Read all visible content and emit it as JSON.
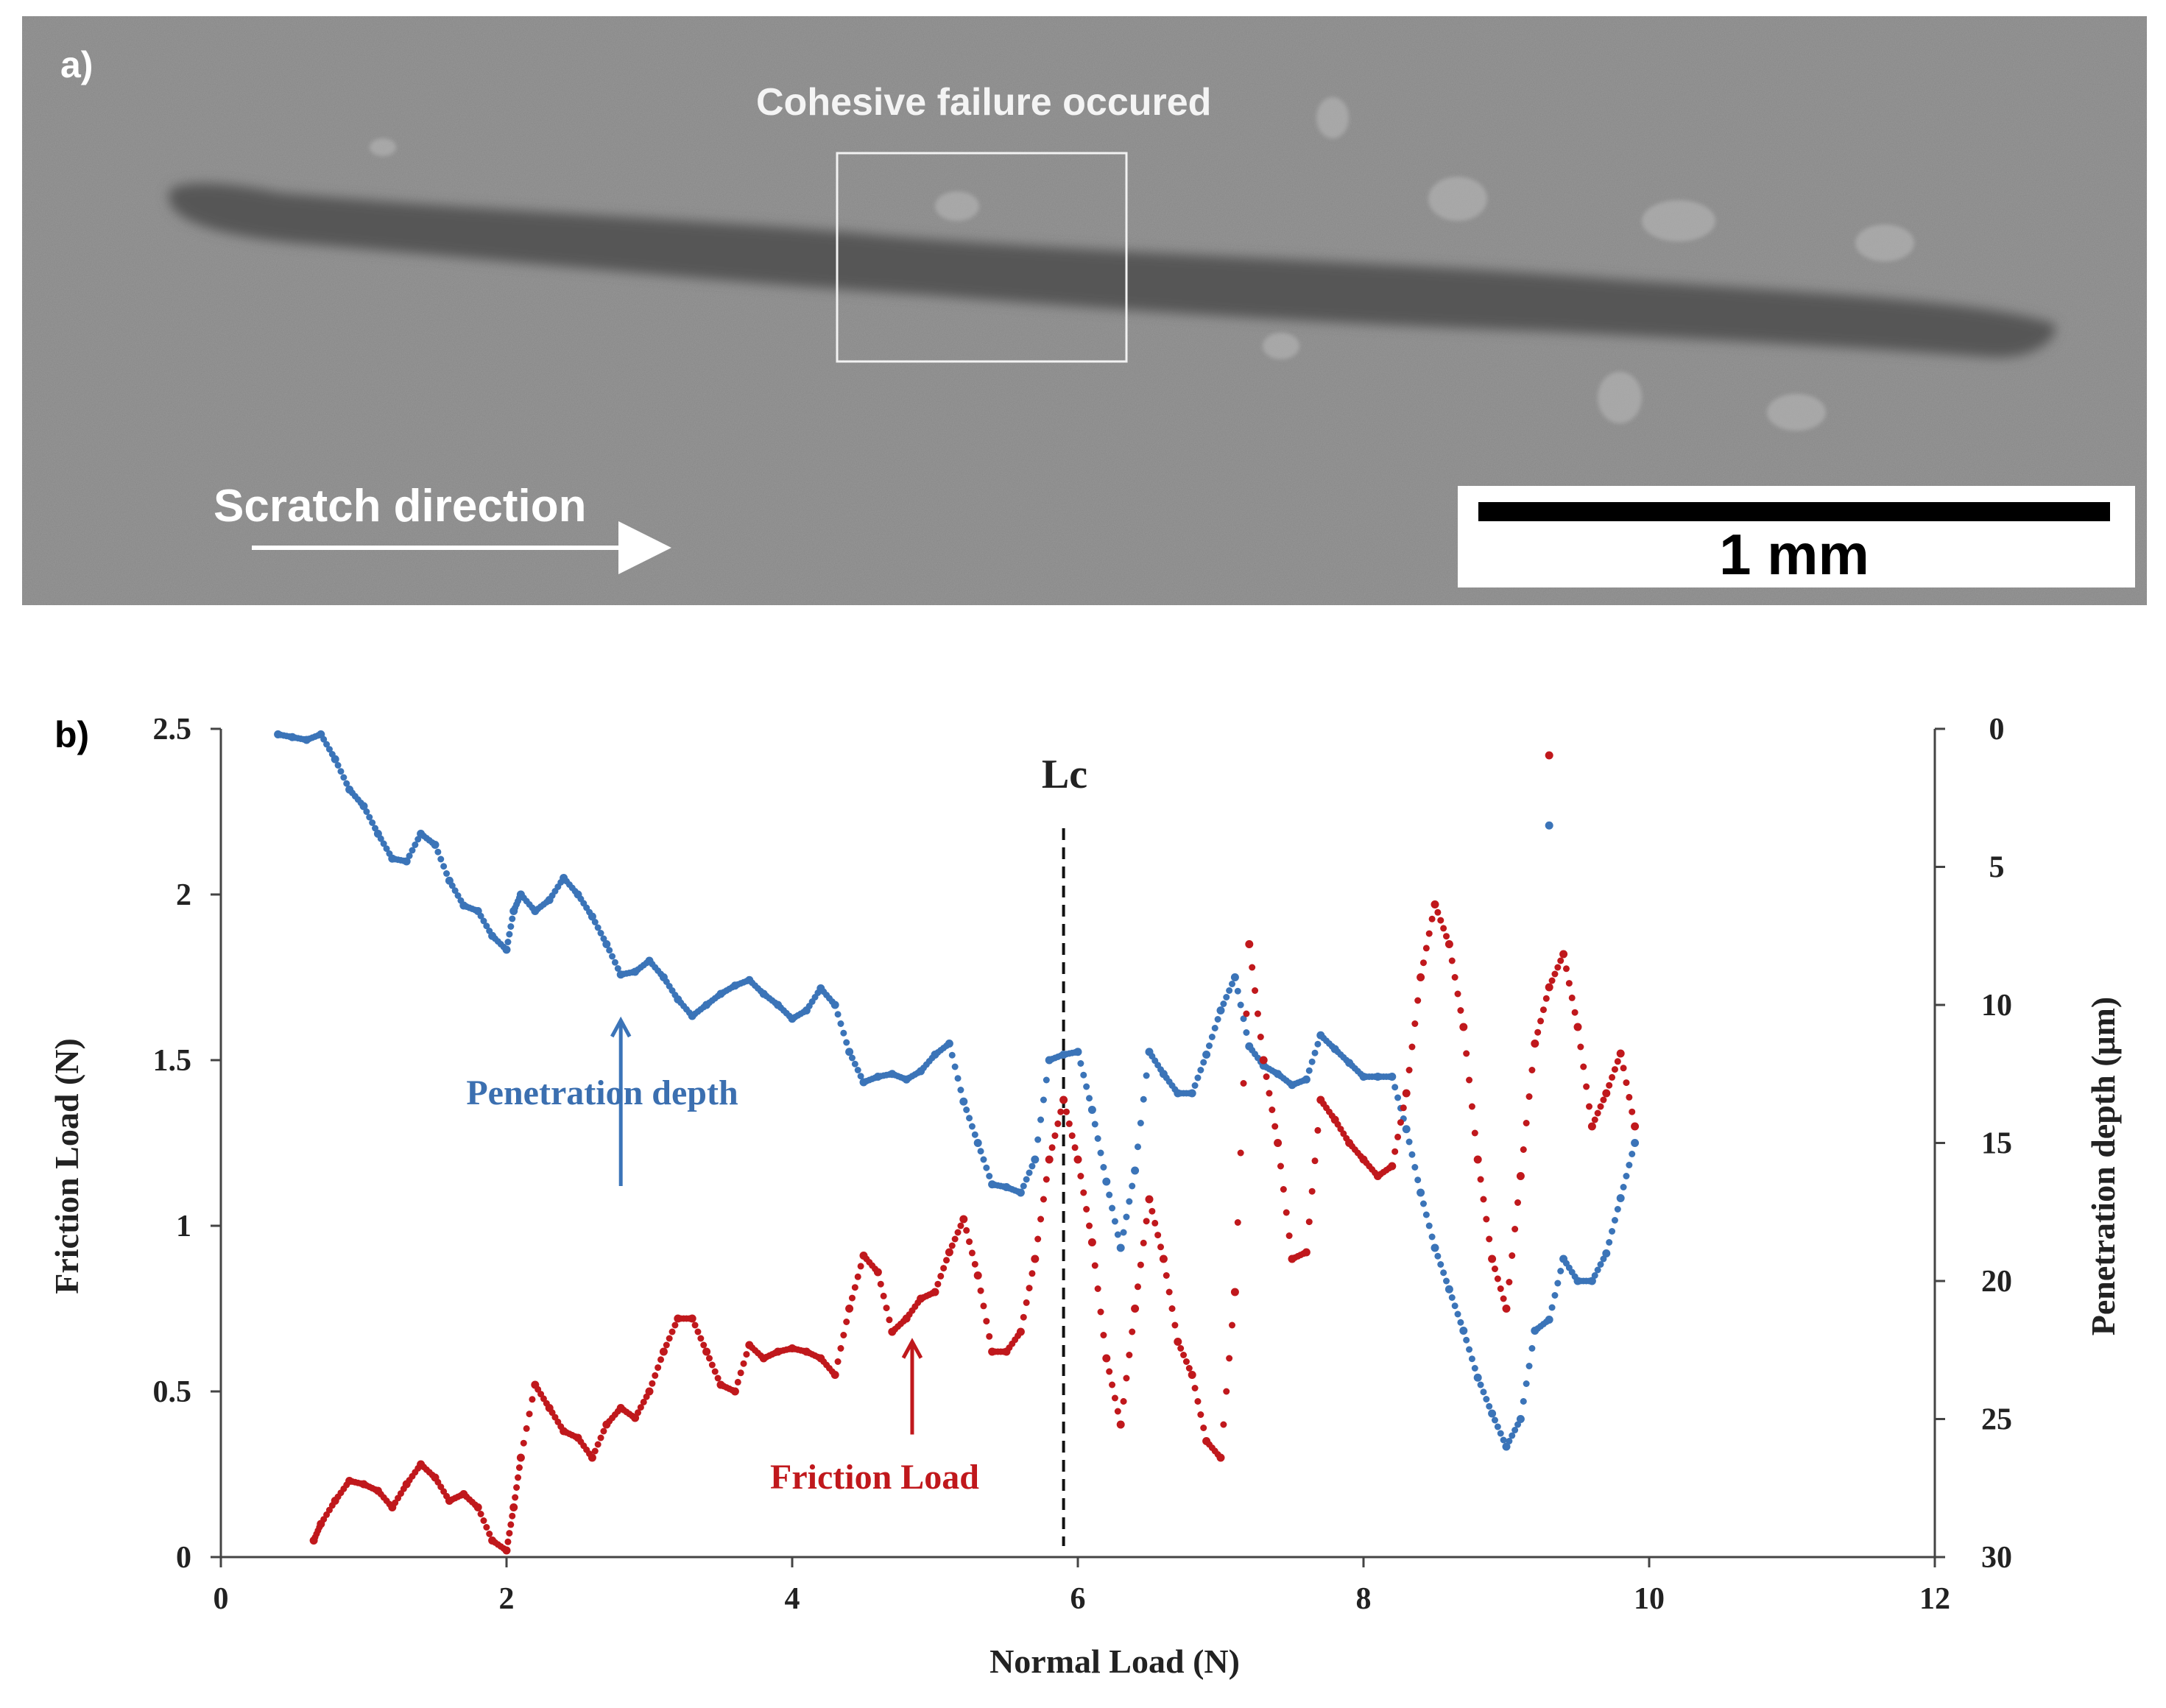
{
  "panel_a": {
    "label": "a)",
    "annotation": "Cohesive failure occured",
    "direction_label": "Scratch direction",
    "scale_bar_label": "1 mm"
  },
  "chart_data": {
    "type": "scatter",
    "panel_label": "b)",
    "xlabel": "Normal Load (N)",
    "ylabel_left": "Friction Load (N)",
    "ylabel_right": "Penetration depth (μm)",
    "xlim": [
      0,
      12
    ],
    "ylim_left": [
      0,
      2.5
    ],
    "ylim_right": [
      0,
      30
    ],
    "right_axis_inverted": true,
    "x_ticks": [
      "0",
      "2",
      "4",
      "6",
      "8",
      "10",
      "12"
    ],
    "y_left_ticks": [
      "0",
      "0.5",
      "1",
      "1.5",
      "2",
      "2.5"
    ],
    "y_right_ticks": [
      "0",
      "5",
      "10",
      "15",
      "20",
      "25",
      "30"
    ],
    "marker_line": {
      "x": 5.9,
      "label": "Lc"
    },
    "annotations": [
      {
        "text": "Penetration depth",
        "color": "#3b6fb0"
      },
      {
        "text": "Friction Load",
        "color": "#c0181c"
      }
    ],
    "colors": {
      "penetration": "#3b74b8",
      "friction": "#c0181c"
    },
    "series": [
      {
        "axis": "right",
        "x": [
          0.4,
          0.5,
          0.6,
          0.7,
          0.8,
          0.9,
          1.0,
          1.1,
          1.2,
          1.3,
          1.4,
          1.5,
          1.6,
          1.7,
          1.8,
          1.9,
          2.0,
          2.05,
          2.1,
          2.2,
          2.3,
          2.4,
          2.5,
          2.6,
          2.7,
          2.8,
          2.9,
          3.0,
          3.1,
          3.2,
          3.3,
          3.4,
          3.5,
          3.6,
          3.7,
          3.8,
          3.9,
          4.0,
          4.1,
          4.2,
          4.3,
          4.4,
          4.5,
          4.6,
          4.7,
          4.8,
          4.9,
          5.0,
          5.1,
          5.2,
          5.3,
          5.4,
          5.5,
          5.6,
          5.7,
          5.8,
          5.9,
          6.0,
          6.1,
          6.2,
          6.3,
          6.4,
          6.5,
          6.6,
          6.7,
          6.8,
          6.9,
          7.0,
          7.1,
          7.2,
          7.3,
          7.4,
          7.5,
          7.6,
          7.7,
          7.8,
          7.9,
          8.0,
          8.1,
          8.2,
          8.3,
          8.4,
          8.5,
          8.6,
          8.7,
          8.8,
          8.9,
          9.0,
          9.1,
          9.2,
          9.3,
          9.4,
          9.5,
          9.6,
          9.7,
          9.8,
          9.9
        ],
        "y": [
          0.2,
          0.3,
          0.4,
          0.2,
          1.1,
          2.2,
          2.8,
          3.8,
          4.7,
          4.8,
          3.8,
          4.2,
          5.5,
          6.4,
          6.6,
          7.5,
          8.0,
          6.6,
          6.0,
          6.6,
          6.2,
          5.4,
          6.0,
          6.8,
          7.8,
          8.9,
          8.8,
          8.4,
          9.0,
          9.8,
          10.4,
          10.0,
          9.6,
          9.3,
          9.1,
          9.6,
          10.0,
          10.5,
          10.2,
          9.4,
          10.0,
          11.7,
          12.8,
          12.6,
          12.5,
          12.7,
          12.4,
          11.8,
          11.4,
          13.5,
          15.0,
          16.5,
          16.6,
          16.8,
          15.6,
          12.0,
          11.8,
          11.7,
          13.8,
          16.4,
          18.8,
          16.0,
          11.7,
          12.5,
          13.2,
          13.2,
          11.8,
          10.2,
          9.0,
          11.5,
          12.2,
          12.5,
          12.9,
          12.7,
          11.1,
          11.6,
          12.1,
          12.6,
          12.6,
          12.6,
          14.5,
          16.8,
          18.8,
          20.3,
          21.8,
          23.5,
          24.8,
          26.0,
          25.0,
          21.8,
          21.4,
          19.2,
          20.0,
          20.0,
          19.0,
          17.0,
          15.0
        ]
      },
      {
        "axis": "left",
        "x": [
          0.65,
          0.7,
          0.8,
          0.9,
          1.0,
          1.1,
          1.2,
          1.3,
          1.4,
          1.5,
          1.6,
          1.7,
          1.8,
          1.9,
          2.0,
          2.05,
          2.1,
          2.2,
          2.3,
          2.4,
          2.5,
          2.6,
          2.7,
          2.8,
          2.9,
          3.0,
          3.1,
          3.2,
          3.3,
          3.4,
          3.5,
          3.6,
          3.7,
          3.8,
          3.9,
          4.0,
          4.1,
          4.2,
          4.3,
          4.4,
          4.5,
          4.6,
          4.7,
          4.8,
          4.9,
          5.0,
          5.1,
          5.2,
          5.3,
          5.4,
          5.5,
          5.6,
          5.7,
          5.8,
          5.9,
          6.0,
          6.1,
          6.2,
          6.3,
          6.4,
          6.5,
          6.6,
          6.7,
          6.8,
          6.9,
          7.0,
          7.1,
          7.2,
          7.3,
          7.4,
          7.5,
          7.6,
          7.7,
          7.8,
          7.9,
          8.0,
          8.1,
          8.2,
          8.3,
          8.4,
          8.5,
          8.6,
          8.7,
          8.8,
          8.9,
          9.0,
          9.1,
          9.2,
          9.3,
          9.4,
          9.5,
          9.6,
          9.7,
          9.8,
          9.9
        ],
        "y": [
          0.05,
          0.1,
          0.17,
          0.23,
          0.22,
          0.2,
          0.15,
          0.22,
          0.28,
          0.24,
          0.17,
          0.19,
          0.15,
          0.05,
          0.02,
          0.15,
          0.3,
          0.52,
          0.45,
          0.38,
          0.36,
          0.3,
          0.4,
          0.45,
          0.42,
          0.5,
          0.62,
          0.72,
          0.72,
          0.62,
          0.52,
          0.5,
          0.64,
          0.6,
          0.62,
          0.63,
          0.62,
          0.6,
          0.55,
          0.75,
          0.91,
          0.86,
          0.68,
          0.72,
          0.78,
          0.8,
          0.92,
          1.02,
          0.85,
          0.62,
          0.62,
          0.68,
          0.9,
          1.2,
          1.38,
          1.2,
          0.95,
          0.6,
          0.4,
          0.75,
          1.08,
          0.9,
          0.65,
          0.55,
          0.35,
          0.3,
          0.8,
          1.85,
          1.5,
          1.25,
          0.9,
          0.92,
          1.38,
          1.32,
          1.25,
          1.2,
          1.15,
          1.18,
          1.4,
          1.75,
          1.97,
          1.85,
          1.6,
          1.2,
          0.9,
          0.75,
          1.15,
          1.55,
          1.72,
          1.82,
          1.6,
          1.3,
          1.4,
          1.52,
          1.3
        ]
      }
    ],
    "outliers": [
      {
        "series": "penetration",
        "x": 9.3,
        "y": 3.5
      },
      {
        "series": "friction",
        "x": 9.3,
        "y": 2.42
      }
    ]
  }
}
